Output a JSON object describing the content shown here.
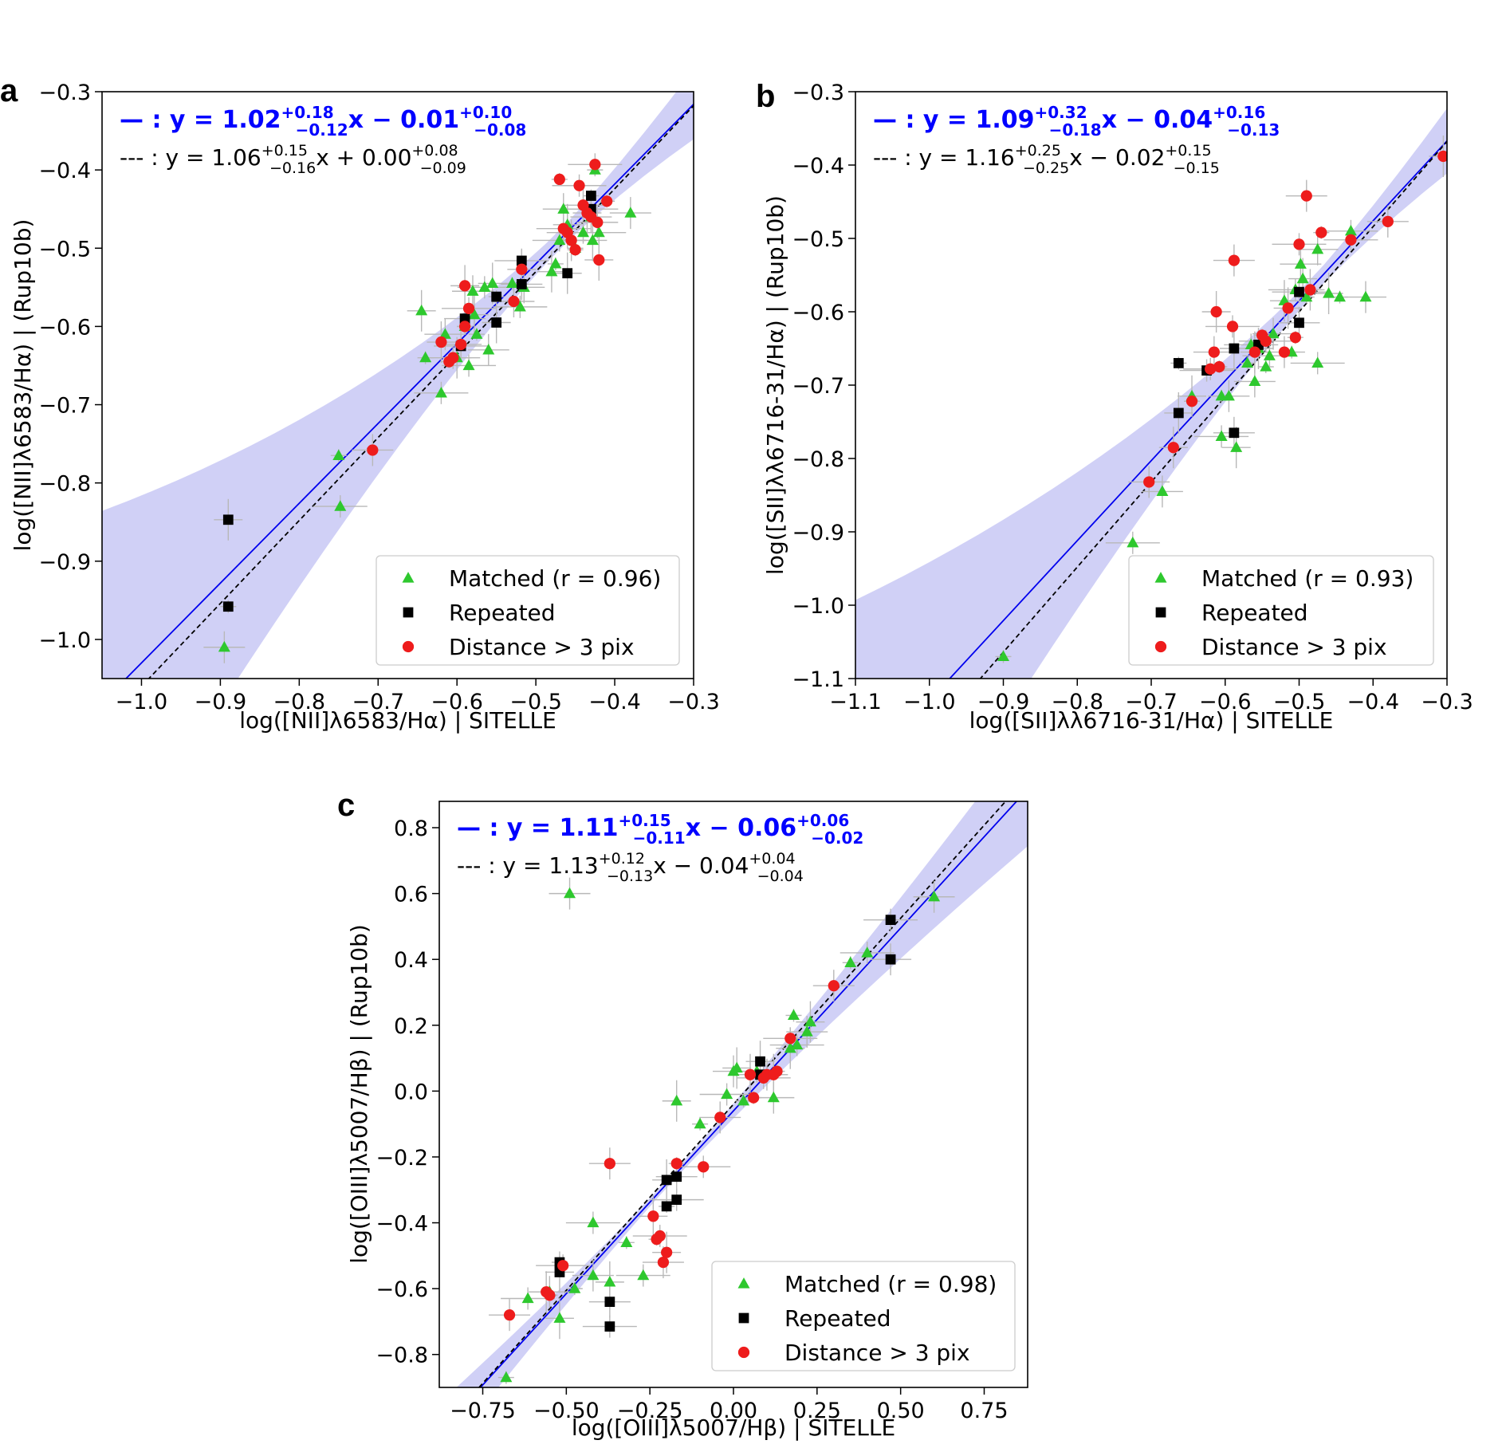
{
  "chart_data": [
    {
      "type": "scatter",
      "panel": "a",
      "xlabel": "log([NII]λ6583/Hα) | SITELLE",
      "ylabel": "log([NII]λ6583/Hα) | (Rup10b)",
      "xlim": [
        -1.05,
        -0.3
      ],
      "ylim": [
        -1.05,
        -0.3
      ],
      "xticks": [
        "−1.0",
        "−0.9",
        "−0.8",
        "−0.7",
        "−0.6",
        "−0.5",
        "−0.4",
        "−0.3"
      ],
      "yticks": [
        "−0.3",
        "−0.4",
        "−0.5",
        "−0.6",
        "−0.7",
        "−0.8",
        "−0.9",
        "−1.0"
      ],
      "xtick_values": [
        -1.0,
        -0.9,
        -0.8,
        -0.7,
        -0.6,
        -0.5,
        -0.4,
        -0.3
      ],
      "ytick_values": [
        -0.3,
        -0.4,
        -0.5,
        -0.6,
        -0.7,
        -0.8,
        -0.9,
        -1.0
      ],
      "fit_solid": {
        "prefix": "— : ",
        "label": "y = 1.02",
        "slope_up": "+0.18",
        "slope_dn": "−0.12",
        "mid": "x − 0.01",
        "int_up": "+0.10",
        "int_dn": "−0.08",
        "slope": 1.02,
        "intercept": -0.01
      },
      "fit_dashed": {
        "prefix": "--- : ",
        "label": "y = 1.06",
        "slope_up": "+0.15",
        "slope_dn": "−0.16",
        "mid": "x + 0.00",
        "int_up": "+0.08",
        "int_dn": "−0.09",
        "slope": 1.06,
        "intercept": 0.0
      },
      "legend": [
        "Matched (r = 0.96)",
        "Repeated",
        "Distance > 3 pix"
      ],
      "series": [
        {
          "name": "Matched",
          "marker": "triangle",
          "color": "#2ec82e",
          "points": [
            [
              -0.75,
              -0.765
            ],
            [
              -0.748,
              -0.83
            ],
            [
              -0.895,
              -1.01
            ],
            [
              -0.645,
              -0.58
            ],
            [
              -0.64,
              -0.64
            ],
            [
              -0.62,
              -0.685
            ],
            [
              -0.615,
              -0.61
            ],
            [
              -0.6,
              -0.64
            ],
            [
              -0.59,
              -0.6
            ],
            [
              -0.585,
              -0.65
            ],
            [
              -0.58,
              -0.555
            ],
            [
              -0.578,
              -0.585
            ],
            [
              -0.575,
              -0.61
            ],
            [
              -0.565,
              -0.55
            ],
            [
              -0.56,
              -0.63
            ],
            [
              -0.555,
              -0.545
            ],
            [
              -0.53,
              -0.545
            ],
            [
              -0.52,
              -0.575
            ],
            [
              -0.515,
              -0.55
            ],
            [
              -0.48,
              -0.53
            ],
            [
              -0.475,
              -0.52
            ],
            [
              -0.47,
              -0.49
            ],
            [
              -0.465,
              -0.45
            ],
            [
              -0.46,
              -0.47
            ],
            [
              -0.45,
              -0.5
            ],
            [
              -0.44,
              -0.48
            ],
            [
              -0.43,
              -0.46
            ],
            [
              -0.428,
              -0.49
            ],
            [
              -0.425,
              -0.4
            ],
            [
              -0.42,
              -0.48
            ],
            [
              -0.38,
              -0.455
            ]
          ]
        },
        {
          "name": "Repeated",
          "marker": "square",
          "color": "#000000",
          "points": [
            [
              -0.89,
              -0.847
            ],
            [
              -0.89,
              -0.958
            ],
            [
              -0.595,
              -0.625
            ],
            [
              -0.59,
              -0.59
            ],
            [
              -0.55,
              -0.595
            ],
            [
              -0.55,
              -0.562
            ],
            [
              -0.518,
              -0.516
            ],
            [
              -0.518,
              -0.546
            ],
            [
              -0.46,
              -0.532
            ],
            [
              -0.43,
              -0.433
            ],
            [
              -0.43,
              -0.45
            ]
          ]
        },
        {
          "name": "Distance > 3 pix",
          "marker": "circle",
          "color": "#ee1c1c",
          "points": [
            [
              -0.707,
              -0.758
            ],
            [
              -0.62,
              -0.62
            ],
            [
              -0.61,
              -0.645
            ],
            [
              -0.605,
              -0.64
            ],
            [
              -0.595,
              -0.623
            ],
            [
              -0.59,
              -0.548
            ],
            [
              -0.59,
              -0.6
            ],
            [
              -0.585,
              -0.577
            ],
            [
              -0.528,
              -0.568
            ],
            [
              -0.518,
              -0.527
            ],
            [
              -0.47,
              -0.412
            ],
            [
              -0.465,
              -0.475
            ],
            [
              -0.46,
              -0.48
            ],
            [
              -0.455,
              -0.49
            ],
            [
              -0.45,
              -0.502
            ],
            [
              -0.445,
              -0.42
            ],
            [
              -0.44,
              -0.445
            ],
            [
              -0.435,
              -0.455
            ],
            [
              -0.43,
              -0.46
            ],
            [
              -0.425,
              -0.393
            ],
            [
              -0.422,
              -0.467
            ],
            [
              -0.42,
              -0.515
            ],
            [
              -0.41,
              -0.44
            ]
          ]
        }
      ]
    },
    {
      "type": "scatter",
      "panel": "b",
      "xlabel": "log([SII]λλ6716-31/Hα) | SITELLE",
      "ylabel": "log([SII]λλ6716-31/Hα) | (Rup10b)",
      "xlim": [
        -1.1,
        -0.3
      ],
      "ylim": [
        -1.1,
        -0.3
      ],
      "xticks": [
        "−1.1",
        "−1.0",
        "−0.9",
        "−0.8",
        "−0.7",
        "−0.6",
        "−0.5",
        "−0.4",
        "−0.3"
      ],
      "yticks": [
        "−0.3",
        "−0.4",
        "−0.5",
        "−0.6",
        "−0.7",
        "−0.8",
        "−0.9",
        "−1.0",
        "−1.1"
      ],
      "xtick_values": [
        -1.1,
        -1.0,
        -0.9,
        -0.8,
        -0.7,
        -0.6,
        -0.5,
        -0.4,
        -0.3
      ],
      "ytick_values": [
        -0.3,
        -0.4,
        -0.5,
        -0.6,
        -0.7,
        -0.8,
        -0.9,
        -1.0,
        -1.1
      ],
      "fit_solid": {
        "prefix": "— : ",
        "label": "y = 1.09",
        "slope_up": "+0.32",
        "slope_dn": "−0.18",
        "mid": "x  − 0.04",
        "int_up": "+0.16",
        "int_dn": "−0.13",
        "slope": 1.09,
        "intercept": -0.04
      },
      "fit_dashed": {
        "prefix": "--- : ",
        "label": "y = 1.16",
        "slope_up": "+0.25",
        "slope_dn": "−0.25",
        "mid": "x  − 0.02",
        "int_up": "+0.15",
        "int_dn": "−0.15",
        "slope": 1.16,
        "intercept": -0.02
      },
      "legend": [
        "Matched (r = 0.93)",
        "Repeated",
        "Distance > 3 pix"
      ],
      "series": [
        {
          "name": "Matched",
          "marker": "triangle",
          "color": "#2ec82e",
          "points": [
            [
              -0.9,
              -1.07
            ],
            [
              -0.725,
              -0.915
            ],
            [
              -0.685,
              -0.845
            ],
            [
              -0.645,
              -0.715
            ],
            [
              -0.605,
              -0.715
            ],
            [
              -0.605,
              -0.77
            ],
            [
              -0.595,
              -0.715
            ],
            [
              -0.585,
              -0.785
            ],
            [
              -0.57,
              -0.67
            ],
            [
              -0.565,
              -0.645
            ],
            [
              -0.56,
              -0.695
            ],
            [
              -0.555,
              -0.65
            ],
            [
              -0.545,
              -0.675
            ],
            [
              -0.54,
              -0.66
            ],
            [
              -0.535,
              -0.63
            ],
            [
              -0.52,
              -0.585
            ],
            [
              -0.51,
              -0.655
            ],
            [
              -0.505,
              -0.57
            ],
            [
              -0.498,
              -0.535
            ],
            [
              -0.495,
              -0.555
            ],
            [
              -0.49,
              -0.58
            ],
            [
              -0.475,
              -0.67
            ],
            [
              -0.475,
              -0.515
            ],
            [
              -0.46,
              -0.575
            ],
            [
              -0.445,
              -0.58
            ],
            [
              -0.43,
              -0.49
            ],
            [
              -0.41,
              -0.58
            ]
          ]
        },
        {
          "name": "Repeated",
          "marker": "square",
          "color": "#000000",
          "points": [
            [
              -0.663,
              -0.738
            ],
            [
              -0.663,
              -0.67
            ],
            [
              -0.625,
              -0.68
            ],
            [
              -0.588,
              -0.765
            ],
            [
              -0.588,
              -0.65
            ],
            [
              -0.555,
              -0.645
            ],
            [
              -0.5,
              -0.573
            ],
            [
              -0.5,
              -0.615
            ]
          ]
        },
        {
          "name": "Distance > 3 pix",
          "marker": "circle",
          "color": "#ee1c1c",
          "points": [
            [
              -0.703,
              -0.832
            ],
            [
              -0.67,
              -0.785
            ],
            [
              -0.645,
              -0.722
            ],
            [
              -0.62,
              -0.678
            ],
            [
              -0.615,
              -0.655
            ],
            [
              -0.612,
              -0.6
            ],
            [
              -0.608,
              -0.675
            ],
            [
              -0.59,
              -0.62
            ],
            [
              -0.588,
              -0.53
            ],
            [
              -0.56,
              -0.655
            ],
            [
              -0.55,
              -0.632
            ],
            [
              -0.545,
              -0.64
            ],
            [
              -0.52,
              -0.655
            ],
            [
              -0.515,
              -0.595
            ],
            [
              -0.505,
              -0.635
            ],
            [
              -0.5,
              -0.508
            ],
            [
              -0.49,
              -0.442
            ],
            [
              -0.485,
              -0.57
            ],
            [
              -0.47,
              -0.492
            ],
            [
              -0.43,
              -0.502
            ],
            [
              -0.38,
              -0.477
            ],
            [
              -0.305,
              -0.388
            ]
          ]
        }
      ]
    },
    {
      "type": "scatter",
      "panel": "c",
      "xlabel": "log([OIII]λ5007/Hβ) | SITELLE",
      "ylabel": "log([OIII]λ5007/Hβ) | (Rup10b)",
      "xlim": [
        -0.88,
        0.88
      ],
      "ylim": [
        -0.9,
        0.88
      ],
      "xticks": [
        "−0.75",
        "−0.50",
        "−0.25",
        "0.00",
        "0.25",
        "0.50",
        "0.75"
      ],
      "yticks": [
        "0.8",
        "0.6",
        "0.4",
        "0.2",
        "0.0",
        "−0.2",
        "−0.4",
        "−0.6",
        "−0.8"
      ],
      "xtick_values": [
        -0.75,
        -0.5,
        -0.25,
        0.0,
        0.25,
        0.5,
        0.75
      ],
      "ytick_values": [
        0.8,
        0.6,
        0.4,
        0.2,
        0.0,
        -0.2,
        -0.4,
        -0.6,
        -0.8
      ],
      "fit_solid": {
        "prefix": "— : ",
        "label": "y = 1.11",
        "slope_up": "+0.15",
        "slope_dn": "−0.11",
        "mid": "x − 0.06",
        "int_up": "+0.06",
        "int_dn": "−0.02",
        "slope": 1.11,
        "intercept": -0.06
      },
      "fit_dashed": {
        "prefix": "--- : ",
        "label": "y = 1.13",
        "slope_up": "+0.12",
        "slope_dn": "−0.13",
        "mid": "x − 0.04",
        "int_up": "+0.04",
        "int_dn": "−0.04",
        "slope": 1.13,
        "intercept": -0.04
      },
      "legend": [
        "Matched (r = 0.98)",
        "Repeated",
        "Distance > 3 pix"
      ],
      "series": [
        {
          "name": "Matched",
          "marker": "triangle",
          "color": "#2ec82e",
          "points": [
            [
              -0.68,
              -0.87
            ],
            [
              -0.615,
              -0.63
            ],
            [
              -0.55,
              -0.61
            ],
            [
              -0.52,
              -0.69
            ],
            [
              -0.475,
              -0.6
            ],
            [
              -0.42,
              -0.4
            ],
            [
              -0.42,
              -0.56
            ],
            [
              -0.37,
              -0.58
            ],
            [
              -0.32,
              -0.46
            ],
            [
              -0.27,
              -0.56
            ],
            [
              -0.49,
              0.6
            ],
            [
              -0.17,
              -0.03
            ],
            [
              -0.1,
              -0.1
            ],
            [
              -0.02,
              -0.01
            ],
            [
              0.0,
              0.06
            ],
            [
              0.01,
              0.07
            ],
            [
              0.03,
              -0.03
            ],
            [
              0.07,
              0.06
            ],
            [
              0.12,
              -0.02
            ],
            [
              0.17,
              0.13
            ],
            [
              0.18,
              0.23
            ],
            [
              0.19,
              0.14
            ],
            [
              0.22,
              0.18
            ],
            [
              0.23,
              0.21
            ],
            [
              0.35,
              0.39
            ],
            [
              0.4,
              0.42
            ],
            [
              0.6,
              0.59
            ]
          ]
        },
        {
          "name": "Repeated",
          "marker": "square",
          "color": "#000000",
          "points": [
            [
              -0.52,
              -0.55
            ],
            [
              -0.52,
              -0.52
            ],
            [
              -0.37,
              -0.715
            ],
            [
              -0.37,
              -0.64
            ],
            [
              -0.2,
              -0.27
            ],
            [
              -0.2,
              -0.35
            ],
            [
              -0.17,
              -0.33
            ],
            [
              -0.17,
              -0.26
            ],
            [
              0.08,
              0.09
            ],
            [
              0.08,
              0.05
            ],
            [
              0.47,
              0.52
            ],
            [
              0.47,
              0.4
            ]
          ]
        },
        {
          "name": "Distance > 3 pix",
          "marker": "circle",
          "color": "#ee1c1c",
          "points": [
            [
              -0.67,
              -0.68
            ],
            [
              -0.56,
              -0.61
            ],
            [
              -0.55,
              -0.62
            ],
            [
              -0.51,
              -0.53
            ],
            [
              -0.37,
              -0.22
            ],
            [
              -0.24,
              -0.38
            ],
            [
              -0.23,
              -0.45
            ],
            [
              -0.22,
              -0.44
            ],
            [
              -0.21,
              -0.52
            ],
            [
              -0.2,
              -0.49
            ],
            [
              -0.17,
              -0.22
            ],
            [
              -0.09,
              -0.23
            ],
            [
              -0.04,
              -0.08
            ],
            [
              0.05,
              0.05
            ],
            [
              0.06,
              -0.02
            ],
            [
              0.09,
              0.04
            ],
            [
              0.1,
              0.05
            ],
            [
              0.12,
              0.05
            ],
            [
              0.13,
              0.06
            ],
            [
              0.17,
              0.16
            ],
            [
              0.3,
              0.32
            ]
          ]
        }
      ]
    }
  ]
}
